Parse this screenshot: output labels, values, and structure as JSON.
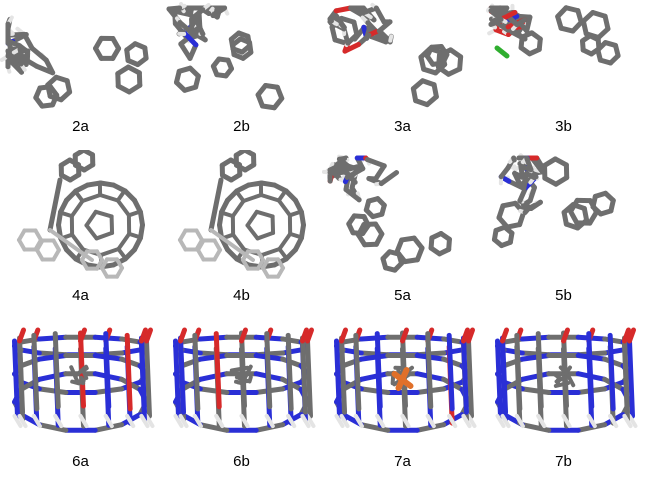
{
  "panels": [
    {
      "label": "2a",
      "kind": "cage"
    },
    {
      "label": "2b",
      "kind": "cage"
    },
    {
      "label": "3a",
      "kind": "chain"
    },
    {
      "label": "3b",
      "kind": "chain"
    },
    {
      "label": "4a",
      "kind": "fullerene"
    },
    {
      "label": "4b",
      "kind": "fullerene"
    },
    {
      "label": "5a",
      "kind": "macrocycle"
    },
    {
      "label": "5b",
      "kind": "macrocycle"
    },
    {
      "label": "6a",
      "kind": "cucurbituril"
    },
    {
      "label": "6b",
      "kind": "cucurbituril"
    },
    {
      "label": "7a",
      "kind": "cucurbituril"
    },
    {
      "label": "7b",
      "kind": "cucurbituril"
    }
  ],
  "colors": {
    "carbon": "#6e6e6e",
    "carbon_light": "#b8b8b8",
    "hydrogen": "#e4e4e4",
    "nitrogen": "#2a2fd6",
    "oxygen": "#d62a2a",
    "chlorine": "#2fae2f",
    "guest_orange": "#e0702a"
  }
}
